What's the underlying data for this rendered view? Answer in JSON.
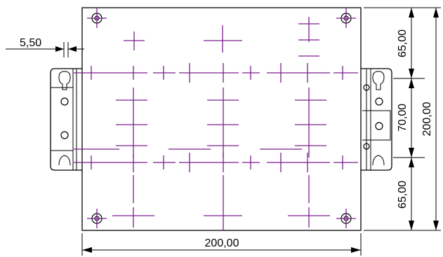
{
  "drawing": {
    "dims": {
      "width_bottom": "200,00",
      "height_total": "200,00",
      "seg_top": "65,00",
      "seg_mid": "70,00",
      "seg_bottom": "65,00",
      "offset_left": "5,50"
    },
    "colors": {
      "outline": "#000000",
      "centerline": "#7a1f8c"
    }
  }
}
